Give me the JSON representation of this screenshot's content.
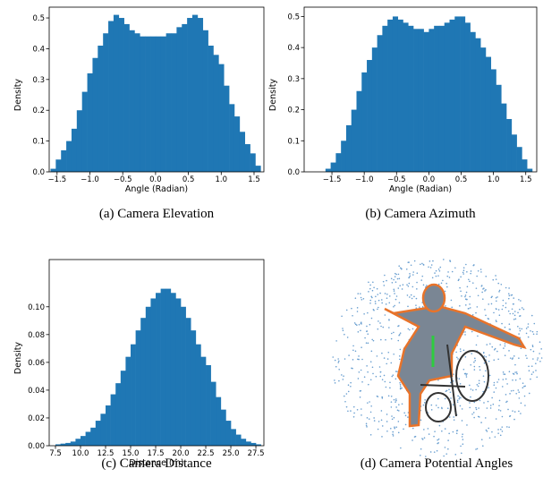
{
  "chart_data": [
    {
      "type": "histogram",
      "caption": "(a)  Camera Elevation",
      "xlabel": "Angle (Radian)",
      "ylabel": "Density",
      "color": "#1f77b4",
      "bins": [
        -1.6,
        -1.52,
        -1.44,
        -1.36,
        -1.28,
        -1.2,
        -1.12,
        -1.04,
        -0.96,
        -0.88,
        -0.8,
        -0.72,
        -0.64,
        -0.56,
        -0.48,
        -0.4,
        -0.32,
        -0.24,
        -0.16,
        -0.08,
        0,
        0.08,
        0.16,
        0.24,
        0.32,
        0.4,
        0.48,
        0.56,
        0.64,
        0.72,
        0.8,
        0.88,
        0.96,
        1.04,
        1.12,
        1.2,
        1.28,
        1.36,
        1.44,
        1.52,
        1.6
      ],
      "values": [
        0.01,
        0.04,
        0.07,
        0.1,
        0.14,
        0.2,
        0.26,
        0.32,
        0.37,
        0.41,
        0.45,
        0.49,
        0.51,
        0.5,
        0.48,
        0.46,
        0.45,
        0.44,
        0.44,
        0.44,
        0.44,
        0.44,
        0.45,
        0.45,
        0.47,
        0.48,
        0.5,
        0.51,
        0.5,
        0.46,
        0.41,
        0.38,
        0.35,
        0.28,
        0.22,
        0.18,
        0.13,
        0.09,
        0.06,
        0.02
      ],
      "xlim": [
        -1.62,
        1.65
      ],
      "ylim": [
        0,
        0.535
      ],
      "xticks": [
        {
          "value": -1.5,
          "label": "−1.5"
        },
        {
          "value": -1.0,
          "label": "−1.0"
        },
        {
          "value": -0.5,
          "label": "−0.5"
        },
        {
          "value": 0,
          "label": "0.0"
        },
        0.5,
        {
          "value": 1,
          "label": "1.0"
        },
        1.5
      ],
      "yticks": [
        {
          "value": 0,
          "label": "0.0"
        },
        0.1,
        0.2,
        0.3,
        0.4,
        0.5
      ]
    },
    {
      "type": "histogram",
      "caption": "(b)  Camera Azimuth",
      "xlabel": "Angle (Radian)",
      "ylabel": "Density",
      "color": "#1f77b4",
      "bins": [
        -1.6,
        -1.52,
        -1.44,
        -1.36,
        -1.28,
        -1.2,
        -1.12,
        -1.04,
        -0.96,
        -0.88,
        -0.8,
        -0.72,
        -0.64,
        -0.56,
        -0.48,
        -0.4,
        -0.32,
        -0.24,
        -0.16,
        -0.08,
        0,
        0.08,
        0.16,
        0.24,
        0.32,
        0.4,
        0.48,
        0.56,
        0.64,
        0.72,
        0.8,
        0.88,
        0.96,
        1.04,
        1.12,
        1.2,
        1.28,
        1.36,
        1.44,
        1.52,
        1.6
      ],
      "values": [
        0.01,
        0.03,
        0.06,
        0.1,
        0.15,
        0.2,
        0.26,
        0.32,
        0.36,
        0.4,
        0.44,
        0.47,
        0.49,
        0.5,
        0.49,
        0.48,
        0.47,
        0.46,
        0.46,
        0.45,
        0.46,
        0.47,
        0.47,
        0.48,
        0.49,
        0.5,
        0.5,
        0.48,
        0.45,
        0.43,
        0.4,
        0.37,
        0.33,
        0.28,
        0.22,
        0.17,
        0.12,
        0.08,
        0.04,
        0.01
      ],
      "xlim": [
        -1.93,
        1.67
      ],
      "ylim": [
        0,
        0.53
      ],
      "xticks": [
        {
          "value": -1.5,
          "label": "−1.5"
        },
        {
          "value": -1.0,
          "label": "−1.0"
        },
        {
          "value": -0.5,
          "label": "−0.5"
        },
        {
          "value": 0,
          "label": "0.0"
        },
        0.5,
        {
          "value": 1,
          "label": "1.0"
        },
        1.5
      ],
      "yticks": [
        {
          "value": 0,
          "label": "0.0"
        },
        0.1,
        0.2,
        0.3,
        0.4,
        0.5
      ]
    },
    {
      "type": "histogram",
      "caption": "(c)  Camera Distance",
      "xlabel": "Distance (m)",
      "ylabel": "Density",
      "color": "#1f77b4",
      "bins": [
        7.5,
        8,
        8.5,
        9,
        9.5,
        10,
        10.5,
        11,
        11.5,
        12,
        12.5,
        13,
        13.5,
        14,
        14.5,
        15,
        15.5,
        16,
        16.5,
        17,
        17.5,
        18,
        18.5,
        19,
        19.5,
        20,
        20.5,
        21,
        21.5,
        22,
        22.5,
        23,
        23.5,
        24,
        24.5,
        25,
        25.5,
        26,
        26.5,
        27,
        27.5,
        28
      ],
      "values": [
        0.001,
        0.0015,
        0.002,
        0.003,
        0.005,
        0.007,
        0.01,
        0.013,
        0.018,
        0.023,
        0.029,
        0.037,
        0.045,
        0.054,
        0.064,
        0.073,
        0.083,
        0.092,
        0.1,
        0.106,
        0.11,
        0.113,
        0.113,
        0.11,
        0.106,
        0.1,
        0.092,
        0.083,
        0.073,
        0.064,
        0.058,
        0.046,
        0.035,
        0.026,
        0.018,
        0.012,
        0.008,
        0.005,
        0.003,
        0.002,
        0.001
      ],
      "xlim": [
        6.875,
        28.3
      ],
      "ylim": [
        0,
        0.134
      ],
      "xticks": [
        7.5,
        {
          "value": 10,
          "label": "10.0"
        },
        12.5,
        {
          "value": 15,
          "label": "15.0"
        },
        17.5,
        {
          "value": 20,
          "label": "20.0"
        },
        22.5,
        {
          "value": 25,
          "label": "25.0"
        },
        27.5
      ],
      "yticks": [
        {
          "value": 0,
          "label": "0.00"
        },
        {
          "value": 0.02,
          "label": "0.02"
        },
        {
          "value": 0.04,
          "label": "0.04"
        },
        {
          "value": 0.06,
          "label": "0.06"
        },
        {
          "value": 0.08,
          "label": "0.08"
        },
        {
          "value": 0.1,
          "label": "0.10"
        }
      ]
    }
  ],
  "panel_d": {
    "caption": "(d)  Camera Potential Angles"
  }
}
